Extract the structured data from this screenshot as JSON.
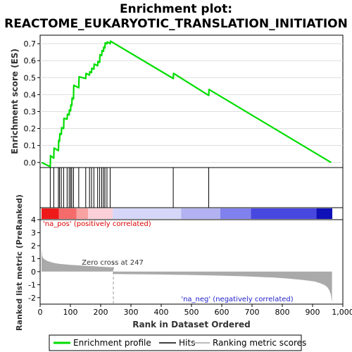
{
  "chart_data": {
    "type": "line",
    "title_line1": "Enrichment plot:",
    "title_line2": "REACTOME_EUKARYOTIC_TRANSLATION_INITIATION",
    "panels": {
      "enrichment": {
        "ylabel": "Enrichment score (ES)",
        "ylim": [
          -0.03,
          0.75
        ],
        "yticks": [
          "0.0",
          "0.1",
          "0.2",
          "0.3",
          "0.4",
          "0.5",
          "0.6",
          "0.7"
        ],
        "ytick_values": [
          0.0,
          0.1,
          0.2,
          0.3,
          0.4,
          0.5,
          0.6,
          0.7
        ],
        "series": [
          {
            "name": "Enrichment profile",
            "color": "#00dd00",
            "x": [
              0,
              30,
              31,
              42,
              43,
              58,
              59,
              62,
              63,
              68,
              69,
              76,
              77,
              88,
              89,
              95,
              96,
              100,
              101,
              104,
              105,
              110,
              111,
              128,
              129,
              152,
              153,
              165,
              166,
              172,
              173,
              180,
              181,
              193,
              194,
              200,
              201,
              207,
              208,
              213,
              214,
              218,
              219,
              225,
              226,
              236,
              237,
              453,
              454,
              575,
              576,
              996
            ],
            "y": [
              0.0,
              -0.025,
              0.04,
              0.025,
              0.085,
              0.07,
              0.13,
              0.125,
              0.17,
              0.165,
              0.205,
              0.2,
              0.26,
              0.255,
              0.285,
              0.28,
              0.31,
              0.305,
              0.34,
              0.335,
              0.38,
              0.375,
              0.455,
              0.44,
              0.505,
              0.495,
              0.525,
              0.515,
              0.535,
              0.53,
              0.555,
              0.55,
              0.58,
              0.57,
              0.595,
              0.59,
              0.635,
              0.63,
              0.66,
              0.655,
              0.68,
              0.675,
              0.705,
              0.7,
              0.71,
              0.7,
              0.715,
              0.495,
              0.525,
              0.395,
              0.43,
              0.0
            ]
          }
        ]
      },
      "hits": {
        "name": "Hits",
        "positions": [
          30,
          42,
          58,
          62,
          68,
          76,
          88,
          95,
          100,
          104,
          110,
          128,
          152,
          165,
          172,
          180,
          193,
          200,
          207,
          213,
          218,
          225,
          236,
          453,
          575
        ]
      },
      "ranked_metric": {
        "name": "Ranking metric scores",
        "ylabel": "Ranked list metric (PreRanked)",
        "xlabel": "Rank in Dataset Ordered",
        "ylim": [
          -2.5,
          4
        ],
        "yticks": [
          "4",
          "3",
          "2",
          "1",
          "0",
          "-1",
          "-2"
        ],
        "ytick_values": [
          4,
          3,
          2,
          1,
          0,
          -1,
          -2
        ],
        "xlim": [
          0,
          1000
        ],
        "xticks": [
          "0",
          "100",
          "200",
          "300",
          "400",
          "500",
          "600",
          "700",
          "800",
          "900",
          "1,000"
        ],
        "xtick_values": [
          0,
          100,
          200,
          300,
          400,
          500,
          600,
          700,
          800,
          900,
          1000
        ],
        "profile_x": [
          0,
          2,
          5,
          10,
          20,
          40,
          60,
          100,
          150,
          200,
          246,
          247,
          300,
          400,
          500,
          600,
          700,
          800,
          850,
          900,
          940,
          960,
          975,
          985,
          990,
          995,
          997,
          999
        ],
        "profile_y": [
          1.75,
          1.25,
          1.05,
          0.95,
          0.82,
          0.68,
          0.6,
          0.52,
          0.45,
          0.38,
          0.33,
          -0.18,
          -0.2,
          -0.22,
          -0.25,
          -0.3,
          -0.36,
          -0.46,
          -0.54,
          -0.64,
          -0.76,
          -0.9,
          -1.05,
          -1.25,
          -1.45,
          -1.75,
          -2.05,
          -2.35
        ],
        "zero_cross_label": "Zero cross at 247",
        "zero_cross_x": 247,
        "pos_label": "'na_pos' (positively correlated)",
        "neg_label": "'na_neg' (negatively correlated)"
      },
      "heatbar": {
        "segments": [
          {
            "x0": 0,
            "x1": 60,
            "color": "#ee1a1a"
          },
          {
            "x0": 60,
            "x1": 120,
            "color": "#f56a6a"
          },
          {
            "x0": 120,
            "x1": 160,
            "color": "#f9a2a2"
          },
          {
            "x0": 160,
            "x1": 245,
            "color": "#fbd0d8"
          },
          {
            "x0": 245,
            "x1": 480,
            "color": "#d6d6f8"
          },
          {
            "x0": 480,
            "x1": 615,
            "color": "#b2b2f2"
          },
          {
            "x0": 615,
            "x1": 720,
            "color": "#8080ee"
          },
          {
            "x0": 720,
            "x1": 945,
            "color": "#4848e0"
          },
          {
            "x0": 945,
            "x1": 1000,
            "color": "#1010b8"
          }
        ]
      }
    },
    "legend": {
      "position": "bottom",
      "entries": [
        {
          "label": "Enrichment profile",
          "color": "#00dd00",
          "kind": "line"
        },
        {
          "label": "Hits",
          "color": "#000000",
          "kind": "line"
        },
        {
          "label": "Ranking metric scores",
          "color": "#bbbbbb",
          "kind": "line"
        }
      ]
    },
    "colors": {
      "profile": "#00dd00",
      "metric_fill": "#aaaaaa",
      "pos_text": "#dd0000",
      "neg_text": "#2222cc",
      "zero_line": "#999999"
    }
  }
}
